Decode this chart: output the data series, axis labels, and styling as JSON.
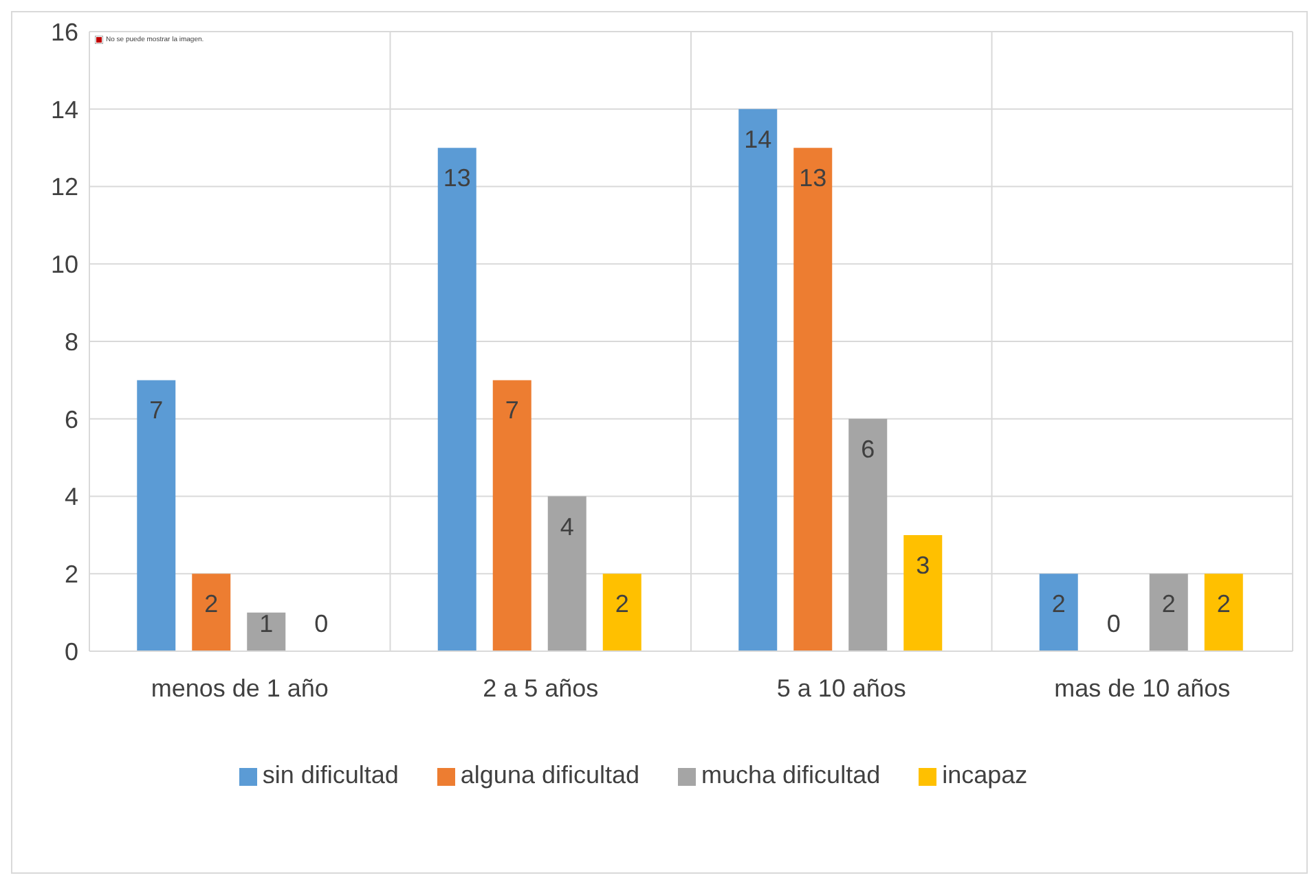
{
  "chart_data": {
    "type": "bar",
    "categories": [
      "menos de 1 año",
      "2 a 5 años",
      "5 a 10 años",
      "mas de 10 años"
    ],
    "series": [
      {
        "name": "sin dificultad",
        "color": "#5b9bd5",
        "values": [
          7,
          13,
          14,
          2
        ]
      },
      {
        "name": "alguna dificultad",
        "color": "#ed7d31",
        "values": [
          2,
          7,
          13,
          0
        ]
      },
      {
        "name": "mucha dificultad",
        "color": "#a5a5a5",
        "values": [
          1,
          4,
          6,
          2
        ]
      },
      {
        "name": "incapaz",
        "color": "#ffc000",
        "values": [
          0,
          2,
          3,
          2
        ]
      }
    ],
    "ylim": [
      0,
      16
    ],
    "yticks": [
      0,
      2,
      4,
      6,
      8,
      10,
      12,
      14,
      16
    ],
    "grid": true,
    "legend": "bottom",
    "data_labels": true,
    "annotations": [
      "No se puede mostrar la imagen."
    ]
  }
}
